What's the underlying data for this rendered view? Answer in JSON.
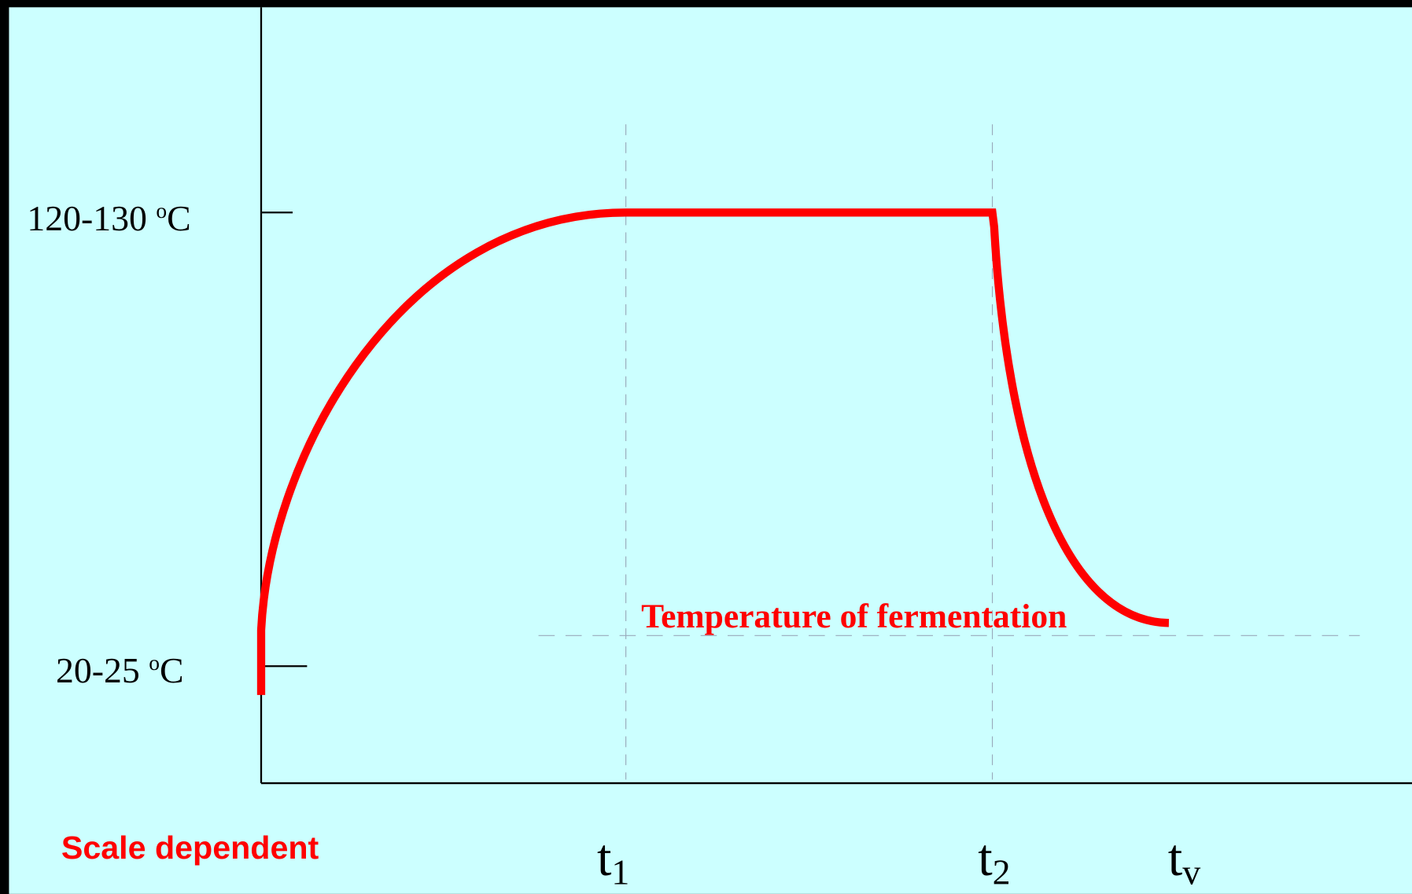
{
  "y_labels": [
    {
      "text": "120-130 ",
      "sup": "o",
      "unit": "C"
    },
    {
      "text": "20-25 ",
      "sup": "o",
      "unit": "C"
    }
  ],
  "x_labels": [
    {
      "text": "t",
      "sub": "1"
    },
    {
      "text": "t",
      "sub": "2"
    },
    {
      "text": "t",
      "sub": "v"
    }
  ],
  "annotation": "Temperature of fermentation",
  "note": "Scale dependent"
}
